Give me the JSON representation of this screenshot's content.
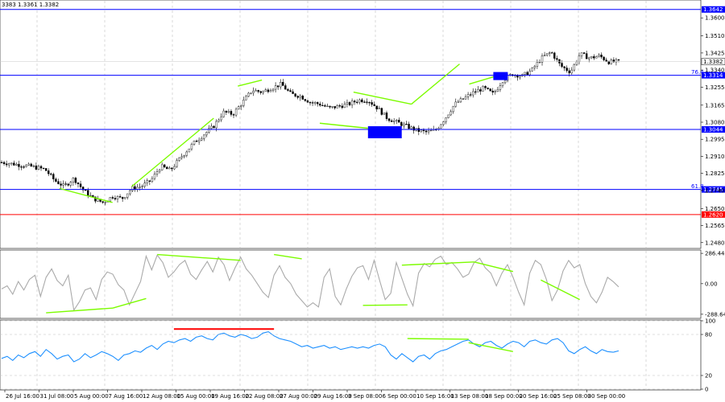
{
  "header": {
    "ohlc_text": "3383 1.3361 1.3382"
  },
  "colors": {
    "bull_candle": "#ffffff",
    "bear_candle": "#000000",
    "level_line": "#0000ff",
    "support_line": "#ff0000",
    "trend_line": "#7cfc00",
    "highlight_box": "#0000ff",
    "rsi_line": "#1e90ff",
    "cci_line": "#aaaaaa",
    "overbought_line": "#ff0000",
    "grid": "#c0c0c0"
  },
  "chart_data": [
    {
      "type": "candlestick",
      "title": "",
      "price_axis": {
        "ylim": [
          1.2455,
          1.3685
        ],
        "ticks": [
          "1.3600",
          "1.3510",
          "1.3425",
          "1.3340",
          "1.3255",
          "1.3165",
          "1.3080",
          "1.2995",
          "1.2910",
          "1.2825",
          "1.2740",
          "1.2650",
          "1.2565",
          "1.2480"
        ]
      },
      "current_price": "1.3382",
      "levels": [
        {
          "price": 1.3642,
          "label": "1.3642",
          "color": "#0000ff"
        },
        {
          "price": 1.3314,
          "label": "1.3314",
          "color": "#0000ff",
          "fib": "76.4"
        },
        {
          "price": 1.3044,
          "label": "1.3044",
          "color": "#0000ff"
        },
        {
          "price": 1.2745,
          "label": "1.2745",
          "color": "#0000ff",
          "fib": "61.8"
        },
        {
          "price": 1.262,
          "label": "1.2620",
          "color": "#ff0000"
        }
      ],
      "x_labels": [
        "26 Jul 16:00",
        "31 Jul 08:00",
        "5 Aug 00:00",
        "7 Aug 16:00",
        "12 Aug 08:00",
        "15 Aug 00:00",
        "19 Aug 16:00",
        "22 Aug 08:00",
        "27 Aug 00:00",
        "29 Aug 16:00",
        "3 Sep 08:00",
        "6 Sep 00:00",
        "10 Sep 16:00",
        "13 Sep 08:00",
        "18 Sep 00:00",
        "20 Sep 16:00",
        "25 Sep 08:00",
        "30 Sep 00:00"
      ],
      "close_path": [
        [
          0,
          1.288
        ],
        [
          3,
          1.287
        ],
        [
          6,
          1.286
        ],
        [
          9,
          1.2845
        ],
        [
          11,
          1.279
        ],
        [
          13,
          1.276
        ],
        [
          15,
          1.28
        ],
        [
          17,
          1.274
        ],
        [
          19,
          1.27
        ],
        [
          21,
          1.268
        ],
        [
          23,
          1.271
        ],
        [
          25,
          1.27
        ],
        [
          27,
          1.275
        ],
        [
          29,
          1.276
        ],
        [
          31,
          1.279
        ],
        [
          33,
          1.286
        ],
        [
          35,
          1.284
        ],
        [
          37,
          1.29
        ],
        [
          40,
          1.298
        ],
        [
          42,
          1.302
        ],
        [
          44,
          1.306
        ],
        [
          46,
          1.313
        ],
        [
          48,
          1.312
        ],
        [
          50,
          1.318
        ],
        [
          52,
          1.324
        ],
        [
          54,
          1.323
        ],
        [
          56,
          1.325
        ],
        [
          58,
          1.327
        ],
        [
          60,
          1.322
        ],
        [
          62,
          1.321
        ],
        [
          64,
          1.318
        ],
        [
          66,
          1.317
        ],
        [
          68,
          1.315
        ],
        [
          70,
          1.316
        ],
        [
          72,
          1.317
        ],
        [
          74,
          1.319
        ],
        [
          76,
          1.319
        ],
        [
          78,
          1.315
        ],
        [
          80,
          1.31
        ],
        [
          82,
          1.308
        ],
        [
          84,
          1.306
        ],
        [
          86,
          1.304
        ],
        [
          88,
          1.303
        ],
        [
          90,
          1.304
        ],
        [
          92,
          1.31
        ],
        [
          94,
          1.317
        ],
        [
          96,
          1.32
        ],
        [
          98,
          1.323
        ],
        [
          100,
          1.325
        ],
        [
          102,
          1.322
        ],
        [
          104,
          1.329
        ],
        [
          106,
          1.332
        ],
        [
          108,
          1.331
        ],
        [
          110,
          1.334
        ],
        [
          112,
          1.34
        ],
        [
          114,
          1.343
        ],
        [
          116,
          1.336
        ],
        [
          118,
          1.333
        ],
        [
          120,
          1.342
        ],
        [
          122,
          1.34
        ],
        [
          124,
          1.341
        ],
        [
          126,
          1.338
        ],
        [
          128,
          1.3382
        ]
      ],
      "trend_lines": [
        [
          [
            12,
            1.275
          ],
          [
            23,
            1.268
          ]
        ],
        [
          [
            27,
            1.276
          ],
          [
            44,
            1.31
          ]
        ],
        [
          [
            49,
            1.326
          ],
          [
            54,
            1.329
          ]
        ],
        [
          [
            66,
            1.3075
          ],
          [
            76,
            1.305
          ]
        ],
        [
          [
            73,
            1.323
          ],
          [
            85,
            1.317
          ]
        ],
        [
          [
            85,
            1.317
          ],
          [
            95,
            1.337
          ]
        ],
        [
          [
            97,
            1.327
          ],
          [
            104,
            1.332
          ]
        ]
      ],
      "highlight_boxes": [
        {
          "x0": 76,
          "x1": 83,
          "y0": 1.3,
          "y1": 1.306
        },
        {
          "x0": 102,
          "x1": 105,
          "y0": 1.329,
          "y1": 1.333
        }
      ]
    },
    {
      "type": "line",
      "title": "",
      "ylim": [
        -320,
        310
      ],
      "ticks": [
        "286.4406",
        "0.00",
        "-288.64"
      ],
      "tick_values": [
        286.4406,
        0,
        -288.64
      ],
      "series": [
        {
          "values": [
            -50,
            -20,
            -100,
            20,
            -60,
            40,
            80,
            -120,
            60,
            140,
            30,
            -20,
            80,
            -250,
            -170,
            -60,
            -40,
            -150,
            40,
            110,
            90,
            -10,
            -60,
            -200,
            -90,
            20,
            260,
            130,
            270,
            200,
            60,
            110,
            180,
            220,
            90,
            40,
            130,
            210,
            110,
            250,
            180,
            30,
            150,
            250,
            140,
            80,
            0,
            -80,
            -130,
            80,
            170,
            60,
            0,
            -100,
            -160,
            -220,
            -180,
            -220,
            60,
            140,
            -120,
            -200,
            -50,
            70,
            150,
            170,
            40,
            220,
            30,
            -150,
            -90,
            200,
            50,
            -100,
            -210,
            100,
            190,
            160,
            230,
            260,
            180,
            200,
            140,
            60,
            90,
            200,
            240,
            150,
            100,
            -20,
            100,
            180,
            60,
            -80,
            -200,
            100,
            220,
            180,
            40,
            -160,
            -60,
            120,
            220,
            150,
            180,
            0,
            -120,
            -180,
            -80,
            60,
            20,
            -30
          ]
        }
      ],
      "trend_lines": [
        [
          [
            8,
            -275
          ],
          [
            20,
            -230
          ]
        ],
        [
          [
            20,
            -230
          ],
          [
            26,
            -140
          ]
        ],
        [
          [
            28,
            275
          ],
          [
            43,
            220
          ]
        ],
        [
          [
            49,
            275
          ],
          [
            54,
            235
          ]
        ],
        [
          [
            65,
            -205
          ],
          [
            73,
            -200
          ]
        ],
        [
          [
            72,
            175
          ],
          [
            85,
            205
          ]
        ],
        [
          [
            85,
            205
          ],
          [
            92,
            115
          ]
        ],
        [
          [
            97,
            35
          ],
          [
            104,
            -150
          ]
        ]
      ]
    },
    {
      "type": "line",
      "title": "",
      "ylim": [
        0,
        100
      ],
      "ticks": [
        "100",
        "80",
        "20",
        "0"
      ],
      "tick_values": [
        100,
        80,
        20,
        0
      ],
      "series": [
        {
          "values": [
            45,
            48,
            42,
            50,
            46,
            52,
            55,
            48,
            58,
            52,
            44,
            48,
            50,
            40,
            44,
            52,
            46,
            50,
            55,
            52,
            48,
            42,
            50,
            52,
            56,
            54,
            60,
            64,
            58,
            66,
            70,
            68,
            72,
            74,
            70,
            76,
            78,
            74,
            72,
            80,
            82,
            78,
            76,
            80,
            78,
            74,
            76,
            82,
            84,
            78,
            74,
            72,
            70,
            66,
            62,
            64,
            60,
            62,
            64,
            60,
            62,
            58,
            60,
            62,
            60,
            62,
            60,
            64,
            66,
            62,
            50,
            44,
            52,
            46,
            40,
            48,
            50,
            44,
            52,
            56,
            58,
            62,
            66,
            70,
            72,
            66,
            62,
            68,
            70,
            64,
            60,
            66,
            70,
            68,
            62,
            70,
            72,
            68,
            66,
            72,
            74,
            68,
            56,
            52,
            58,
            62,
            56,
            52,
            58,
            55,
            54,
            56
          ]
        }
      ],
      "overbought_marker": {
        "x0": 31,
        "x1": 49,
        "value": 88
      },
      "trend_lines": [
        [
          [
            73,
            74
          ],
          [
            84,
            73
          ]
        ],
        [
          [
            84,
            68
          ],
          [
            92,
            55
          ]
        ]
      ]
    }
  ]
}
